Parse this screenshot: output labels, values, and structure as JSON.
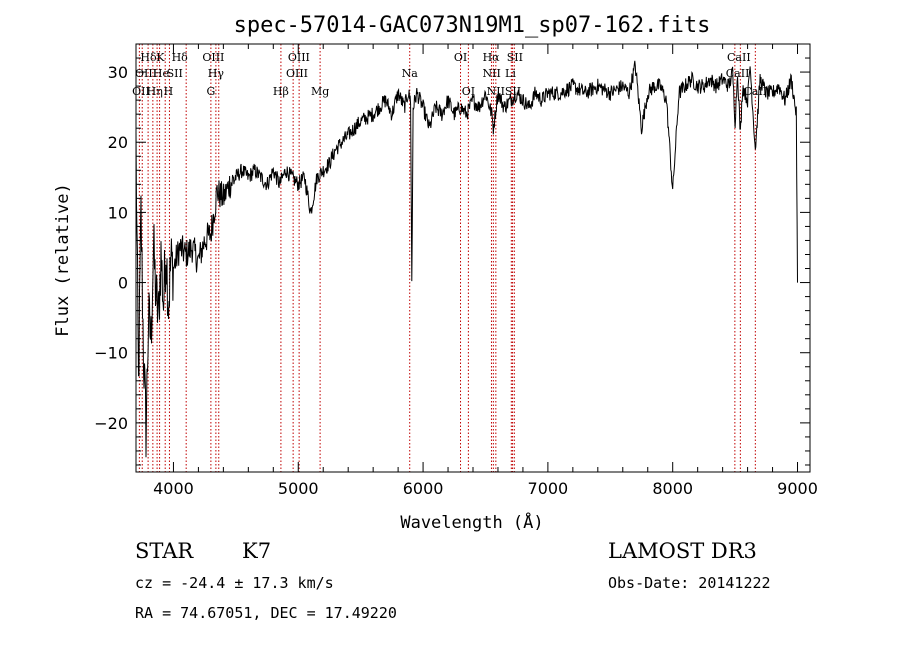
{
  "chart_data": {
    "type": "line",
    "title": "spec-57014-GAC073N19M1_sp07-162.fits",
    "xlabel": "Wavelength (Å)",
    "ylabel": "Flux (relative)",
    "xlim": [
      3700,
      9100
    ],
    "ylim": [
      -27,
      34
    ],
    "xticks": [
      4000,
      5000,
      6000,
      7000,
      8000,
      9000
    ],
    "yticks": [
      -20,
      -10,
      0,
      10,
      20,
      30
    ],
    "series": [
      {
        "name": "flux",
        "x": [
          3700,
          3720,
          3740,
          3760,
          3780,
          3800,
          3820,
          3840,
          3860,
          3880,
          3900,
          3920,
          3940,
          3960,
          3980,
          4000,
          4050,
          4100,
          4150,
          4200,
          4250,
          4300,
          4350,
          4400,
          4450,
          4500,
          4550,
          4600,
          4650,
          4700,
          4750,
          4800,
          4850,
          4900,
          4950,
          5000,
          5050,
          5100,
          5150,
          5200,
          5250,
          5300,
          5400,
          5500,
          5600,
          5700,
          5750,
          5800,
          5850,
          5880,
          5900,
          5910,
          5920,
          5950,
          6000,
          6050,
          6100,
          6150,
          6200,
          6250,
          6300,
          6350,
          6400,
          6450,
          6500,
          6550,
          6563,
          6600,
          6650,
          6700,
          6750,
          6800,
          6850,
          6900,
          6950,
          7000,
          7100,
          7200,
          7300,
          7400,
          7500,
          7600,
          7650,
          7700,
          7750,
          7800,
          7850,
          7900,
          7950,
          8000,
          8050,
          8100,
          8150,
          8200,
          8250,
          8300,
          8350,
          8400,
          8450,
          8480,
          8500,
          8520,
          8542,
          8560,
          8600,
          8620,
          8662,
          8700,
          8750,
          8800,
          8850,
          8900,
          8950,
          8990,
          9000
        ],
        "values": [
          20,
          -15,
          10,
          -10,
          -21,
          -5,
          -8,
          5,
          -2,
          -5,
          4,
          -3,
          5,
          -3,
          3,
          2,
          5,
          4,
          5,
          3,
          6,
          7,
          13,
          12,
          14,
          15,
          16,
          15,
          16,
          15,
          14,
          16,
          14,
          16,
          15,
          14,
          15,
          10,
          15,
          16,
          17,
          19,
          21,
          23,
          24,
          26,
          24,
          27,
          25,
          27,
          26,
          0,
          25,
          27,
          25,
          22,
          25,
          24,
          26,
          24,
          25,
          24,
          26,
          25,
          27,
          24,
          22,
          27,
          25,
          26,
          27,
          26,
          25,
          27,
          26,
          27,
          27,
          28,
          27,
          28,
          27,
          28,
          27,
          31,
          22,
          27,
          28,
          28,
          26,
          13,
          27,
          28,
          29,
          28,
          28,
          29,
          28,
          29,
          28,
          30,
          23,
          30,
          21,
          28,
          26,
          31,
          19,
          29,
          27,
          27,
          28,
          26,
          29,
          24,
          0
        ]
      }
    ],
    "line_markers": [
      {
        "row": 1,
        "name": "Hδ",
        "x": 3800
      },
      {
        "row": 1,
        "name": "K",
        "x": 3895
      },
      {
        "row": 1,
        "name": "Hδ",
        "x": 4050
      },
      {
        "row": 1,
        "name": "OIII",
        "x": 4320
      },
      {
        "row": 1,
        "name": "OIII",
        "x": 5005
      },
      {
        "row": 1,
        "name": "OI",
        "x": 6300
      },
      {
        "row": 1,
        "name": "Hα",
        "x": 6545
      },
      {
        "row": 1,
        "name": "SII",
        "x": 6735
      },
      {
        "row": 1,
        "name": "CaII",
        "x": 8530
      },
      {
        "row": 2,
        "name": "OIII",
        "x": 3780
      },
      {
        "row": 2,
        "name": "He",
        "x": 3900
      },
      {
        "row": 2,
        "name": "SII",
        "x": 4010
      },
      {
        "row": 2,
        "name": "Hγ",
        "x": 4340
      },
      {
        "row": 2,
        "name": "OIII",
        "x": 4990
      },
      {
        "row": 2,
        "name": "Na",
        "x": 5893
      },
      {
        "row": 2,
        "name": "NII",
        "x": 6550
      },
      {
        "row": 2,
        "name": "Li",
        "x": 6700
      },
      {
        "row": 2,
        "name": "CaII",
        "x": 8520
      },
      {
        "row": 3,
        "name": "OII",
        "x": 3740
      },
      {
        "row": 3,
        "name": "Hη",
        "x": 3850
      },
      {
        "row": 3,
        "name": "H",
        "x": 3960
      },
      {
        "row": 3,
        "name": "G",
        "x": 4300
      },
      {
        "row": 3,
        "name": "Hβ",
        "x": 4861
      },
      {
        "row": 3,
        "name": "Mg",
        "x": 5175
      },
      {
        "row": 3,
        "name": "OI",
        "x": 6363
      },
      {
        "row": 3,
        "name": "NII",
        "x": 6583
      },
      {
        "row": 3,
        "name": "SII",
        "x": 6720
      },
      {
        "row": 3,
        "name": "CaII",
        "x": 8662
      }
    ],
    "marker_lines_x": [
      3727,
      3750,
      3797,
      3835,
      3869,
      3889,
      3934,
      3968,
      4102,
      4300,
      4340,
      4363,
      4861,
      4959,
      5007,
      5175,
      5893,
      6300,
      6363,
      6548,
      6563,
      6583,
      6707,
      6717,
      6731,
      8498,
      8542,
      8662
    ]
  },
  "info": {
    "object_class": "STAR",
    "subclass": "K7",
    "survey": "LAMOST DR3",
    "redshift": "cz = -24.4 ± 17.3 km/s",
    "obs_date": "Obs-Date: 20141222",
    "coords": "RA =  74.67051, DEC =  17.49220"
  }
}
